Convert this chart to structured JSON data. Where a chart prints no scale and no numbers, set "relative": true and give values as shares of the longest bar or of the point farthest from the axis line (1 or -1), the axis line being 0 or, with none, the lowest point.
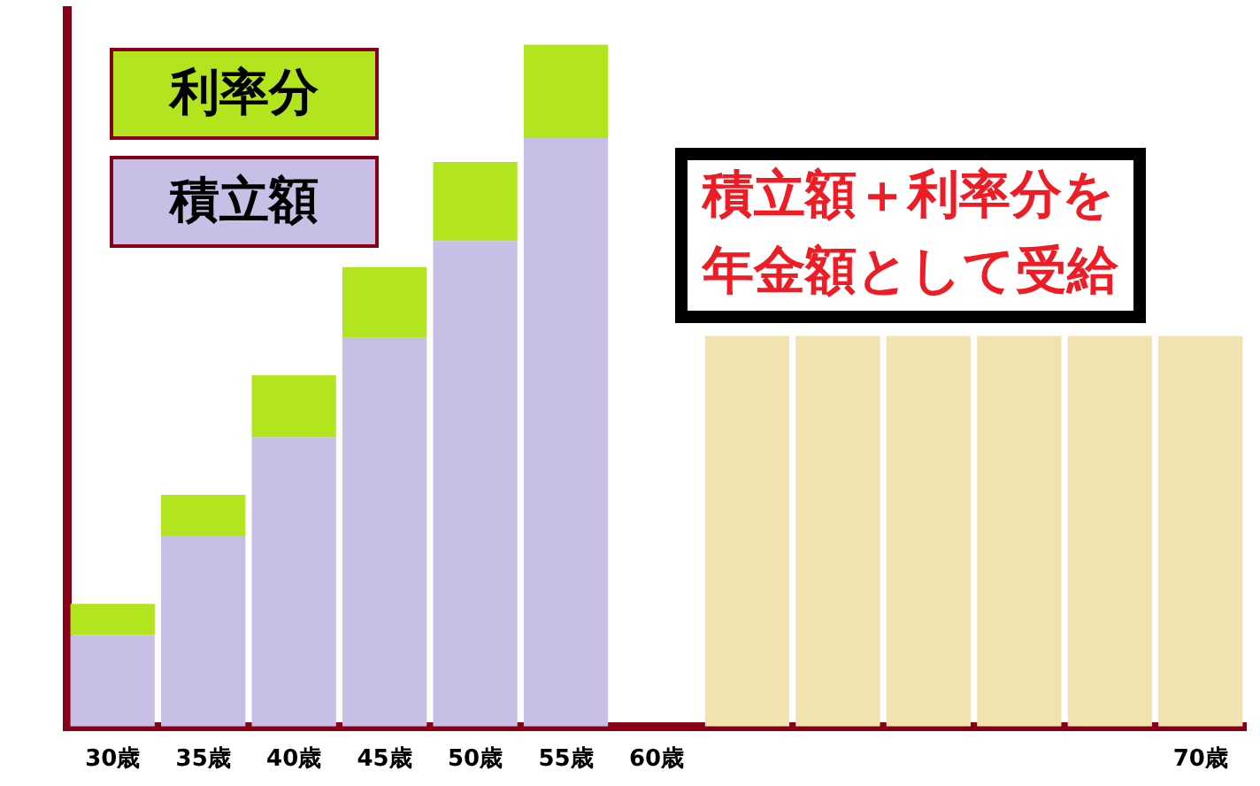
{
  "chart_data": {
    "type": "bar",
    "relative": true,
    "stacked": true,
    "legend": "top left",
    "categories": [
      "30歳",
      "35歳",
      "40歳",
      "45歳",
      "50歳",
      "55歳",
      "60歳",
      null,
      null,
      null,
      null,
      null,
      "70歳"
    ],
    "series": [
      {
        "name": "積立額",
        "color": "#c8bfe6",
        "values": [
          0.134,
          0.279,
          0.424,
          0.57,
          0.712,
          0.863,
          null,
          null,
          null,
          null,
          null,
          null,
          null
        ]
      },
      {
        "name": "利率分",
        "color": "#b3e51e",
        "values": [
          0.046,
          0.061,
          0.091,
          0.104,
          0.116,
          0.137,
          null,
          null,
          null,
          null,
          null,
          null,
          null
        ]
      },
      {
        "color": "#f0e3b0",
        "values": [
          null,
          null,
          null,
          null,
          null,
          null,
          null,
          0.573,
          0.573,
          0.573,
          0.573,
          0.573,
          0.573
        ]
      }
    ],
    "annotations": [
      "積立額＋利率分を年金額として受給"
    ]
  }
}
